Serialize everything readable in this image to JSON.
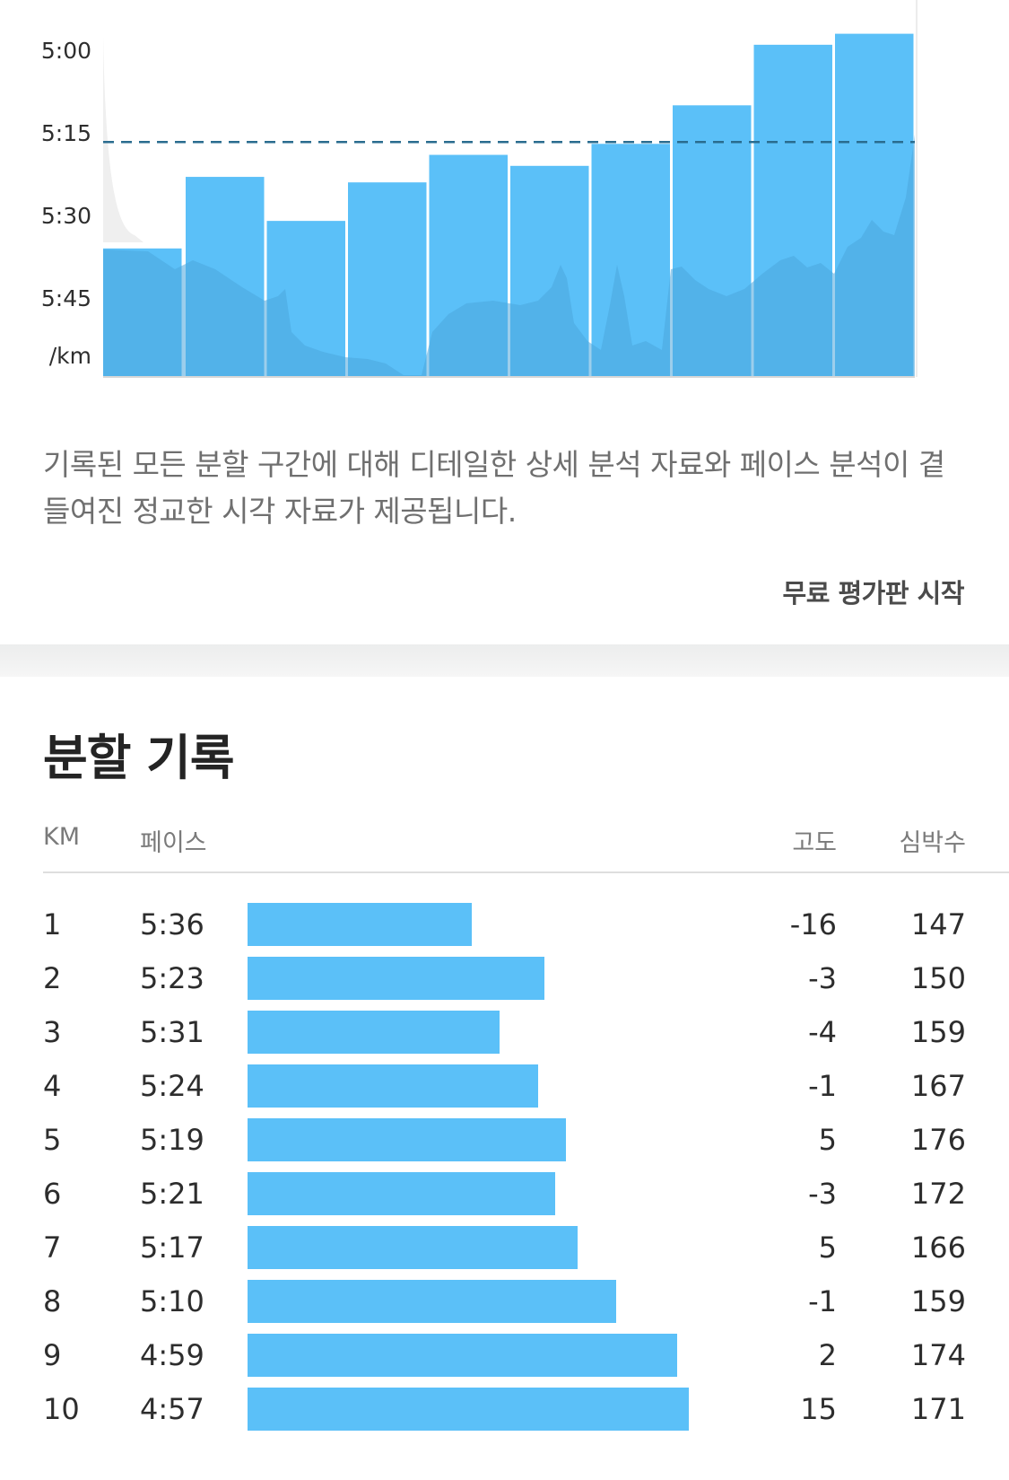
{
  "chart_data": {
    "type": "bar",
    "y_axis": {
      "ticks": [
        "5:00",
        "5:15",
        "5:30",
        "5:45"
      ],
      "unit": "/km",
      "reversed": true,
      "range_seconds": [
        300,
        345
      ]
    },
    "categories": [
      "1",
      "2",
      "3",
      "4",
      "5",
      "6",
      "7",
      "8",
      "9",
      "10"
    ],
    "values_seconds": [
      336,
      323,
      331,
      324,
      319,
      321,
      317,
      310,
      299,
      297
    ],
    "average_pace_seconds": 317,
    "colors": {
      "bar": "#5bc0f8",
      "elevation_area": "#4aa6dd",
      "average_line": "#2a6c8f"
    }
  },
  "description": "기록된 모든 분할 구간에 대해 디테일한 상세 분석 자료와 페이스 분석이 곁들여진 정교한 시각 자료가 제공됩니다.",
  "cta_label": "무료 평가판 시작",
  "splits": {
    "title": "분할 기록",
    "headers": {
      "km": "KM",
      "pace": "페이스",
      "elevation": "고도",
      "heart_rate": "심박수"
    },
    "bar_color": "#5bc0f8",
    "rows": [
      {
        "km": "1",
        "pace": "5:36",
        "elevation": "-16",
        "heart_rate": "147",
        "pace_seconds": 336
      },
      {
        "km": "2",
        "pace": "5:23",
        "elevation": "-3",
        "heart_rate": "150",
        "pace_seconds": 323
      },
      {
        "km": "3",
        "pace": "5:31",
        "elevation": "-4",
        "heart_rate": "159",
        "pace_seconds": 331
      },
      {
        "km": "4",
        "pace": "5:24",
        "elevation": "-1",
        "heart_rate": "167",
        "pace_seconds": 324
      },
      {
        "km": "5",
        "pace": "5:19",
        "elevation": "5",
        "heart_rate": "176",
        "pace_seconds": 319
      },
      {
        "km": "6",
        "pace": "5:21",
        "elevation": "-3",
        "heart_rate": "172",
        "pace_seconds": 321
      },
      {
        "km": "7",
        "pace": "5:17",
        "elevation": "5",
        "heart_rate": "166",
        "pace_seconds": 317
      },
      {
        "km": "8",
        "pace": "5:10",
        "elevation": "-1",
        "heart_rate": "159",
        "pace_seconds": 310
      },
      {
        "km": "9",
        "pace": "4:59",
        "elevation": "2",
        "heart_rate": "174",
        "pace_seconds": 299
      },
      {
        "km": "10",
        "pace": "4:57",
        "elevation": "15",
        "heart_rate": "171",
        "pace_seconds": 297
      }
    ]
  }
}
